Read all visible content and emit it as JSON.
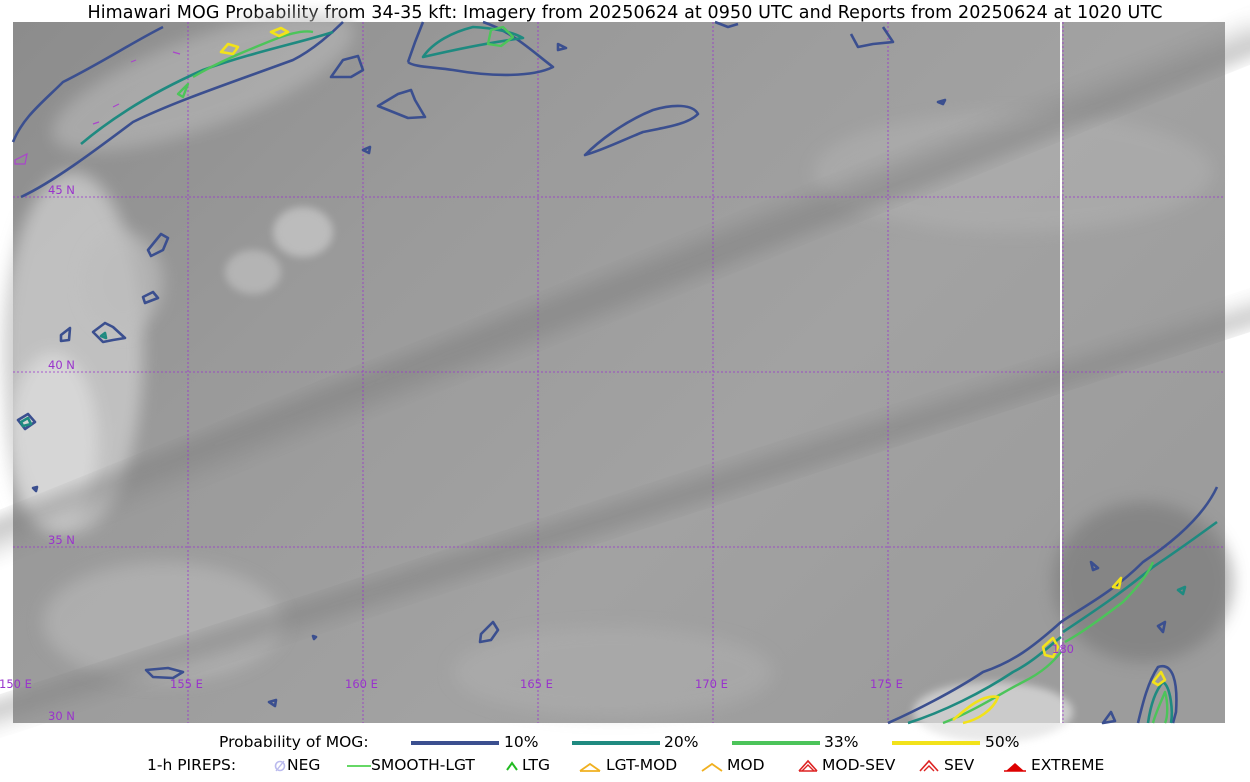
{
  "title": "Himawari MOG Probability from 34-35 kft: Imagery from 20250624 at 0950 UTC and Reports from 20250624 at 1020 UTC",
  "map": {
    "lat_labels": [
      "45 N",
      "40 N",
      "35 N",
      "30 N"
    ],
    "lon_labels": [
      "150 E",
      "155 E",
      "160 E",
      "165 E",
      "170 E",
      "175 E",
      "180"
    ],
    "gridline_color": "#9933cc"
  },
  "legend_probability": {
    "heading": "Probability of MOG:",
    "items": [
      {
        "label": "10%",
        "color": "#3b4f8f"
      },
      {
        "label": "20%",
        "color": "#1f8a80"
      },
      {
        "label": "33%",
        "color": "#4cc45a"
      },
      {
        "label": "50%",
        "color": "#f2e21a"
      }
    ]
  },
  "legend_pireps": {
    "heading": "1-h PIREPS:",
    "items": [
      {
        "label": "NEG",
        "icon": "neg-icon",
        "color": "#bbbbee"
      },
      {
        "label": "SMOOTH-LGT",
        "icon": "smooth-lgt-icon",
        "color": "#33cc33"
      },
      {
        "label": "LTG",
        "icon": "ltg-icon",
        "color": "#22bb22"
      },
      {
        "label": "LGT-MOD",
        "icon": "lgt-mod-icon",
        "color": "#f0b020"
      },
      {
        "label": "MOD",
        "icon": "mod-icon",
        "color": "#f0b020"
      },
      {
        "label": "MOD-SEV",
        "icon": "mod-sev-icon",
        "color": "#dd2222"
      },
      {
        "label": "SEV",
        "icon": "sev-icon",
        "color": "#dd2222"
      },
      {
        "label": "EXTREME",
        "icon": "extreme-icon",
        "color": "#dd0000"
      }
    ]
  }
}
